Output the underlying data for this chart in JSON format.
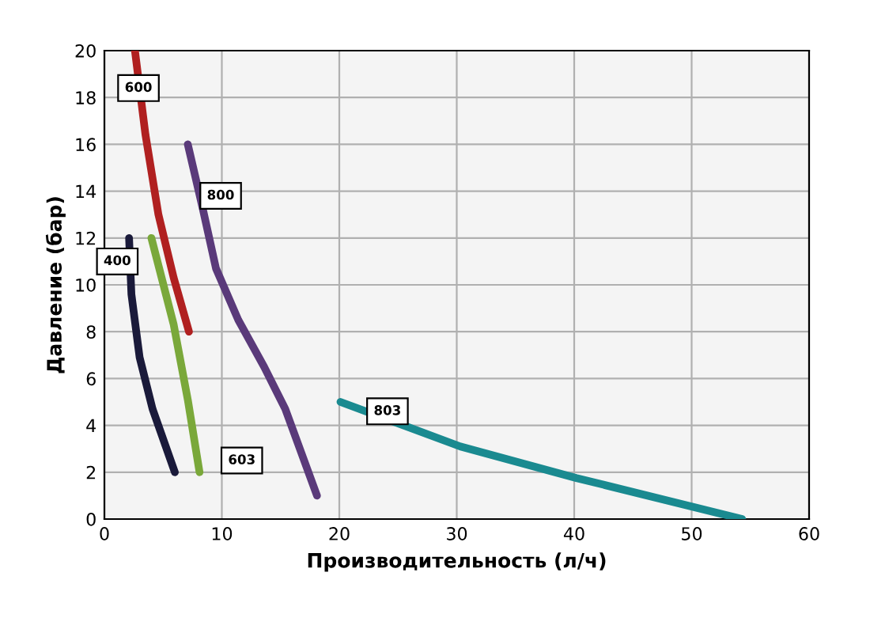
{
  "chart_data": {
    "type": "line",
    "xlabel": "Производительность (л/ч)",
    "ylabel": "Давление (бар)",
    "xlim": [
      0,
      60
    ],
    "xticks": [
      0,
      10,
      20,
      30,
      40,
      50,
      60
    ],
    "ylim": [
      0,
      20
    ],
    "yticks": [
      0,
      2,
      4,
      6,
      8,
      10,
      12,
      14,
      16,
      18,
      20
    ],
    "grid": true,
    "legend": false,
    "marker": "none",
    "line_style": "solid",
    "series": [
      {
        "name": "600",
        "color": "#b02020",
        "x": [
          2.6,
          3.5,
          4.6,
          5.9,
          7.2
        ],
        "values": [
          20,
          16.4,
          13.0,
          10.3,
          8.0
        ]
      },
      {
        "name": "800",
        "color": "#5a3a7a",
        "x": [
          7.1,
          8.4,
          9.5,
          11.4,
          13.6,
          15.4,
          18.1
        ],
        "values": [
          16.0,
          13.2,
          10.7,
          8.5,
          6.5,
          4.7,
          1.0
        ]
      },
      {
        "name": "400",
        "color": "#1a1a3a",
        "x": [
          2.1,
          2.3,
          3.0,
          4.1,
          6.0
        ],
        "values": [
          12.0,
          9.6,
          6.9,
          4.7,
          2.0
        ]
      },
      {
        "name": "603",
        "color": "#7aa83a",
        "x": [
          4.0,
          5.9,
          7.1,
          8.1
        ],
        "values": [
          12.0,
          8.3,
          5.1,
          2.0
        ]
      },
      {
        "name": "803",
        "color": "#1a8a90",
        "x": [
          20.1,
          30.3,
          40.2,
          54.3
        ],
        "values": [
          5.0,
          3.1,
          1.75,
          0
        ]
      }
    ]
  }
}
